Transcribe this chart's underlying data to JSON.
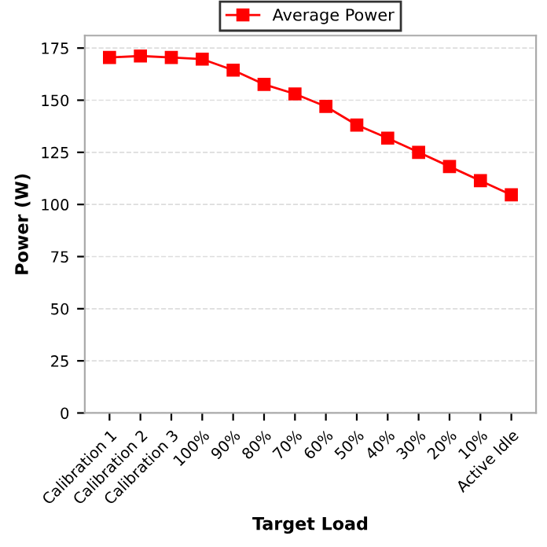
{
  "chart_data": {
    "type": "line",
    "xlabel": "Target Load",
    "ylabel": "Power (W)",
    "categories": [
      "Calibration 1",
      "Calibration 2",
      "Calibration 3",
      "100%",
      "90%",
      "80%",
      "70%",
      "60%",
      "50%",
      "40%",
      "30%",
      "20%",
      "10%",
      "Active Idle"
    ],
    "series": [
      {
        "name": "Average Power",
        "color": "#ff0000",
        "values": [
          170.5,
          171.2,
          170.5,
          169.7,
          164.4,
          157.6,
          153.0,
          147.0,
          138.1,
          131.8,
          125.0,
          118.2,
          111.4,
          104.6
        ]
      }
    ],
    "ylim": [
      0,
      181
    ],
    "yticks": [
      0,
      25,
      50,
      75,
      100,
      125,
      150,
      175
    ],
    "grid": "y",
    "legend": "top",
    "marker": "square",
    "line_style": "solid"
  }
}
